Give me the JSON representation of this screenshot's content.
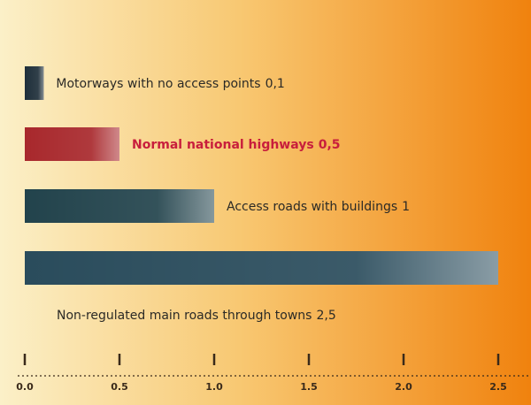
{
  "chart_data": {
    "type": "hbar",
    "categories": [
      "Motorways with no access points",
      "Normal national highways",
      "Access roads with buildings",
      "Non-regulated main roads through towns"
    ],
    "values": [
      0.1,
      0.5,
      1,
      2.5
    ],
    "value_labels": [
      "0,1",
      "0,5",
      "1",
      "2,5"
    ],
    "colors": [
      "#1f2f3a",
      "#a8282c",
      "#22434c",
      "#2a4c5c"
    ],
    "label_colors": [
      "#2b2a26",
      "#c81e3c",
      "#2b2a26",
      "#2b2a26"
    ],
    "xlim": [
      0,
      2.5
    ],
    "xticks": [
      {
        "value": 0,
        "label": "0.0"
      },
      0.5,
      {
        "value": 1,
        "label": "1.0"
      },
      1.5,
      {
        "value": 2,
        "label": "2.0"
      },
      2.5
    ]
  }
}
